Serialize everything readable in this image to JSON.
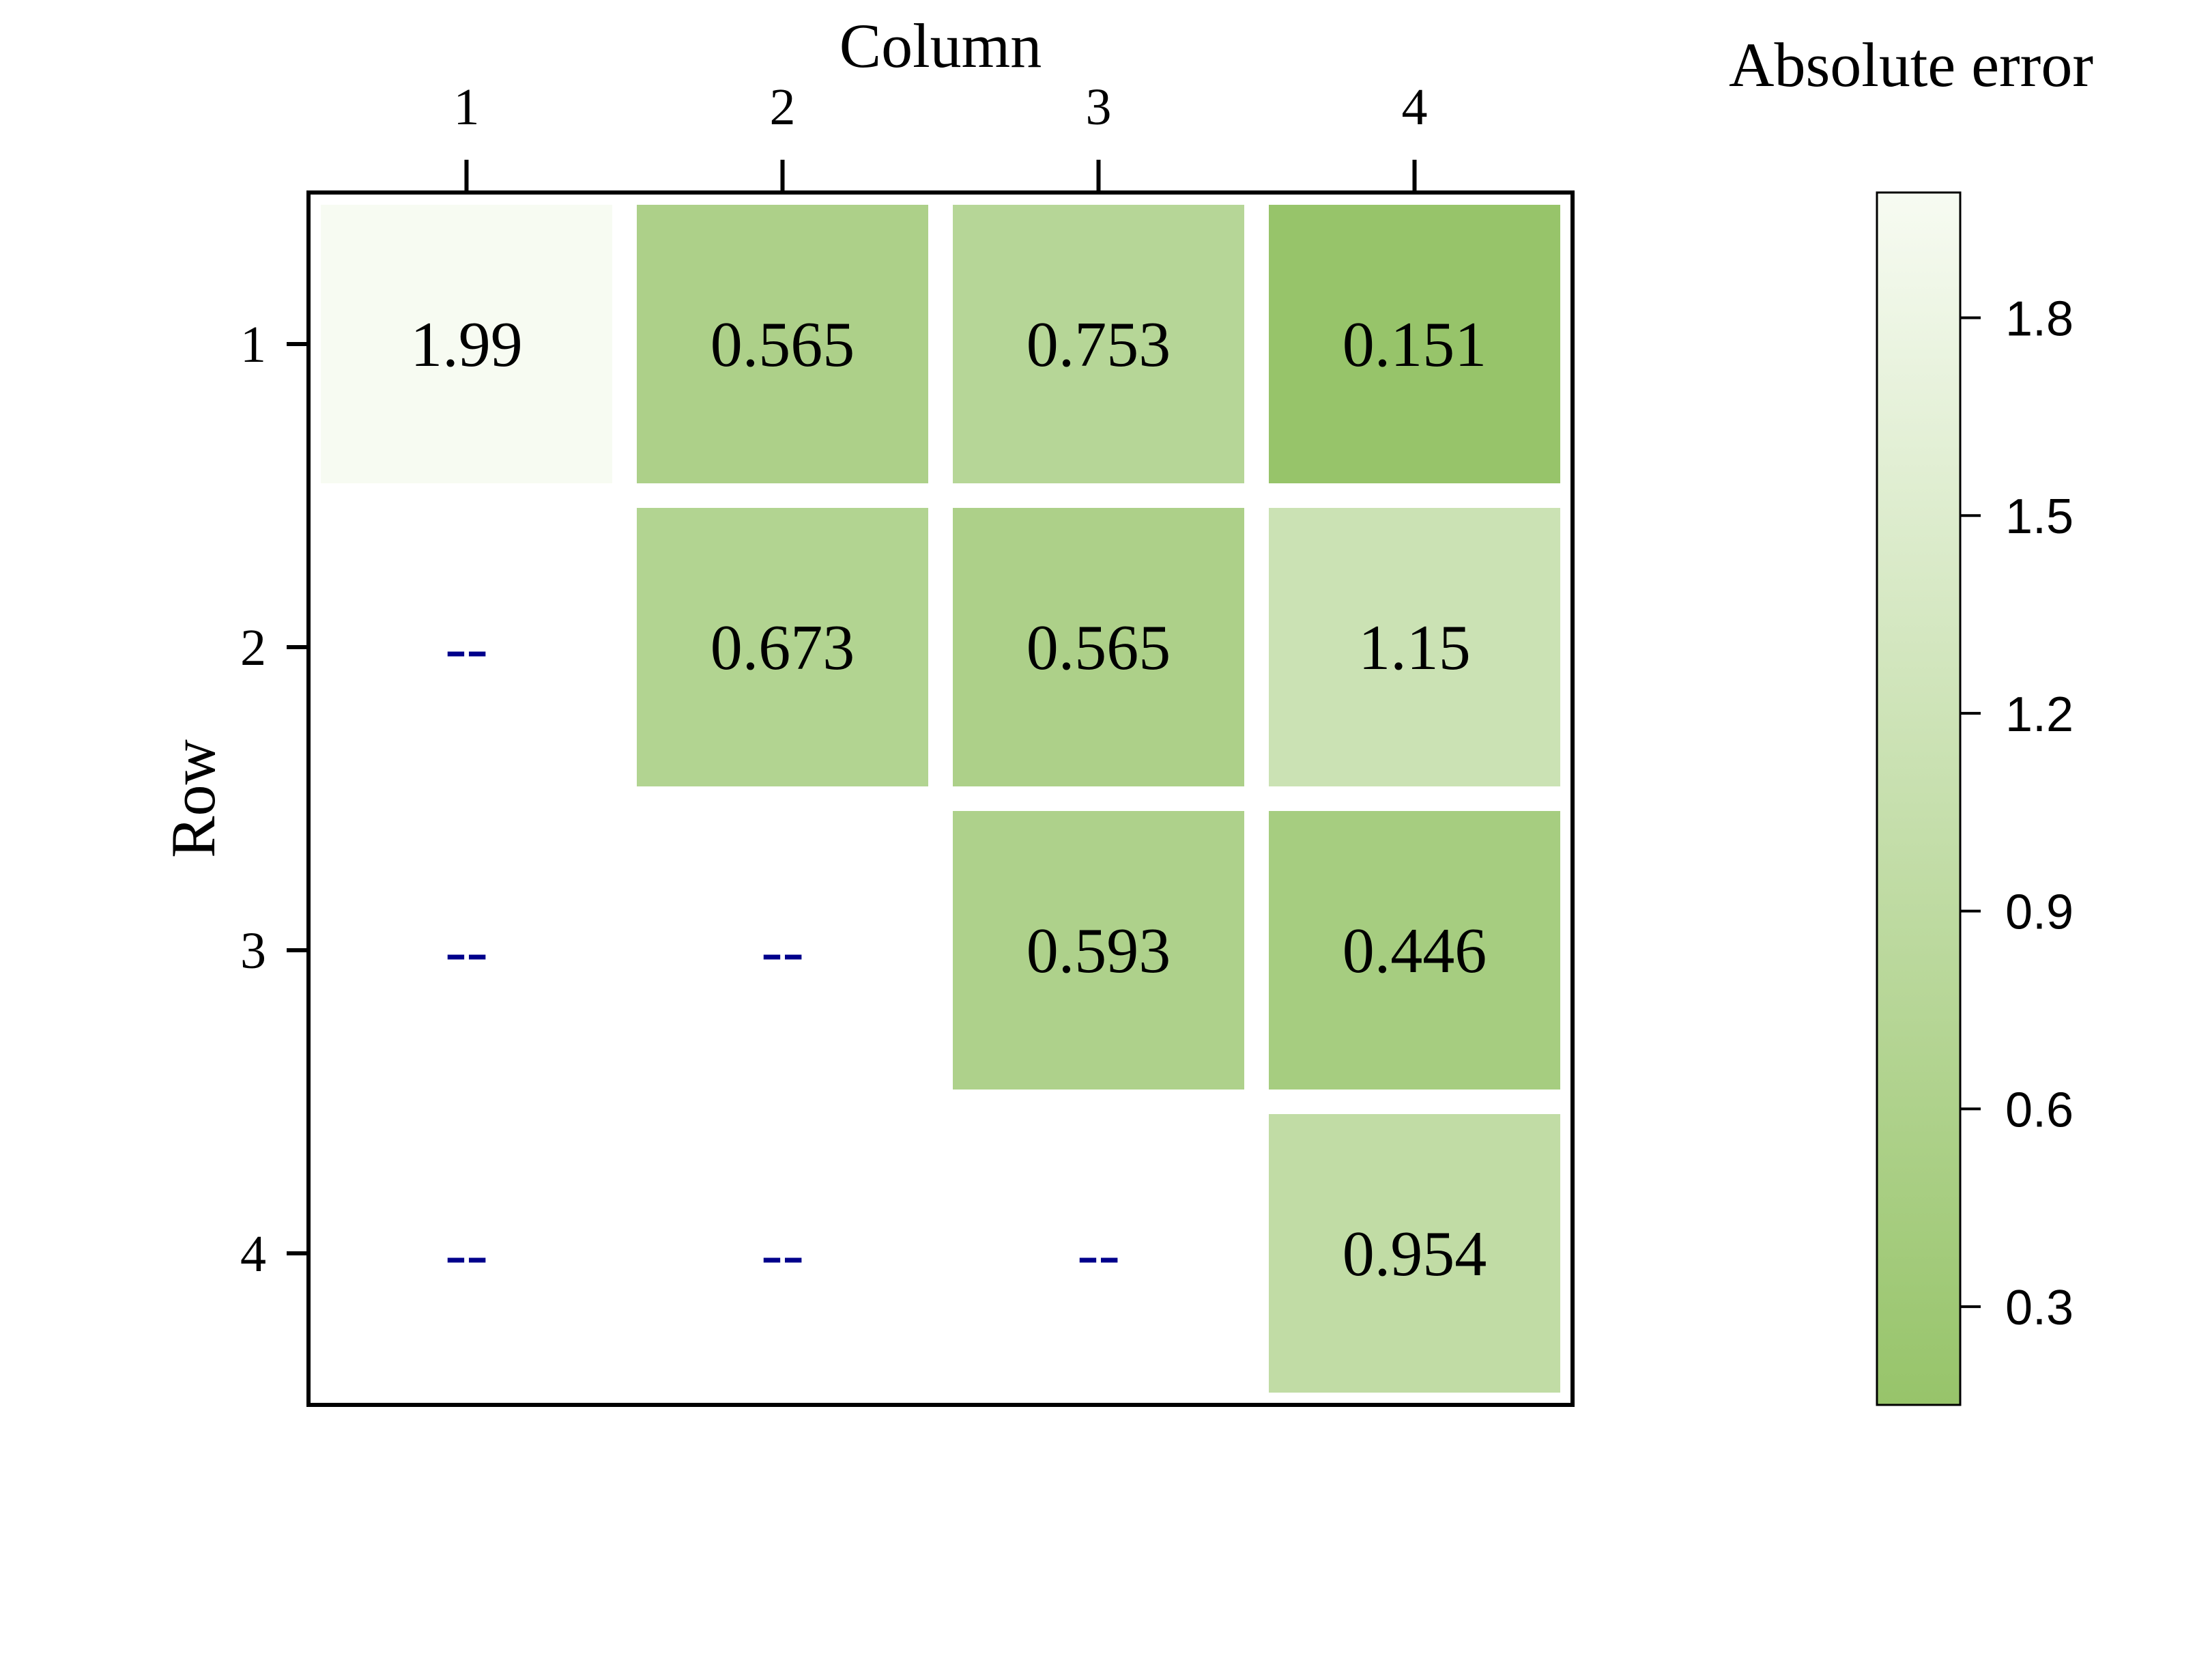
{
  "chart_data": {
    "type": "heatmap",
    "title": "",
    "xlabel": "Column",
    "ylabel": "Row",
    "x_categories": [
      "1",
      "2",
      "3",
      "4"
    ],
    "y_categories": [
      "1",
      "2",
      "3",
      "4"
    ],
    "missing_label": "--",
    "cells": [
      {
        "row": "1",
        "col": "1",
        "value": 1.99,
        "label": "1.99"
      },
      {
        "row": "1",
        "col": "2",
        "value": 0.565,
        "label": "0.565"
      },
      {
        "row": "1",
        "col": "3",
        "value": 0.753,
        "label": "0.753"
      },
      {
        "row": "1",
        "col": "4",
        "value": 0.151,
        "label": "0.151"
      },
      {
        "row": "2",
        "col": "1",
        "value": null,
        "label": "--"
      },
      {
        "row": "2",
        "col": "2",
        "value": 0.673,
        "label": "0.673"
      },
      {
        "row": "2",
        "col": "3",
        "value": 0.565,
        "label": "0.565"
      },
      {
        "row": "2",
        "col": "4",
        "value": 1.15,
        "label": "1.15"
      },
      {
        "row": "3",
        "col": "1",
        "value": null,
        "label": "--"
      },
      {
        "row": "3",
        "col": "2",
        "value": null,
        "label": "--"
      },
      {
        "row": "3",
        "col": "3",
        "value": 0.593,
        "label": "0.593"
      },
      {
        "row": "3",
        "col": "4",
        "value": 0.446,
        "label": "0.446"
      },
      {
        "row": "4",
        "col": "1",
        "value": null,
        "label": "--"
      },
      {
        "row": "4",
        "col": "2",
        "value": null,
        "label": "--"
      },
      {
        "row": "4",
        "col": "3",
        "value": null,
        "label": "--"
      },
      {
        "row": "4",
        "col": "4",
        "value": 0.954,
        "label": "0.954"
      }
    ],
    "colorbar": {
      "title": "Absolute error",
      "range": [
        0.151,
        1.99
      ],
      "ticks": [
        0.3,
        0.6,
        0.9,
        1.2,
        1.5,
        1.8
      ],
      "tick_labels": [
        "0.3",
        "0.6",
        "0.9",
        "1.2",
        "1.5",
        "1.8"
      ],
      "color_low": "#97c46a",
      "color_high": "#f7fbf2"
    },
    "colors": {
      "frame": "#000000",
      "missing_text": "#00008b",
      "value_text": "#000000"
    },
    "x_axis_position": "top",
    "grid": false,
    "legend_position": "right"
  }
}
